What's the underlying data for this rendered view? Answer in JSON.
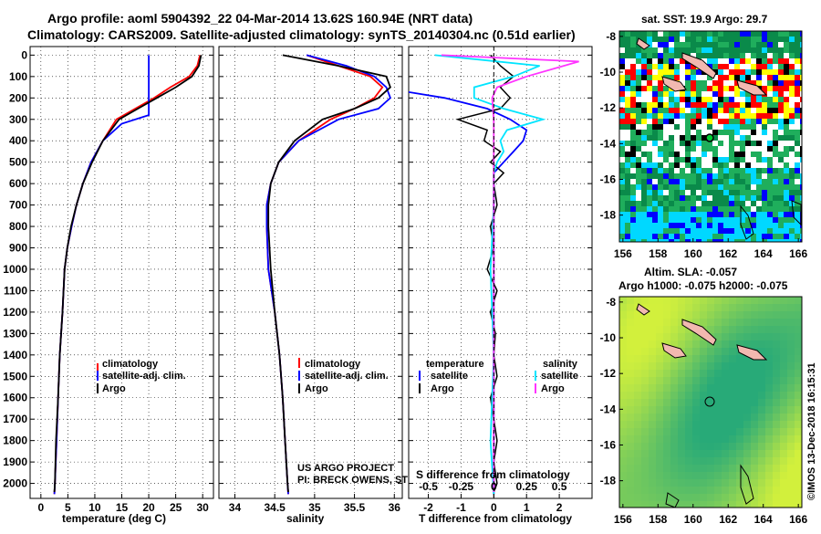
{
  "header": {
    "title_line1": "Argo profile: aoml 5904392_22 04-Mar-2014 13.62S 160.94E (NRT data)",
    "title_line2": "Climatology: CARS2009. Satellite-adjusted climatology: synTS_20140304.nc (0.51d earlier)"
  },
  "colors": {
    "climatology": "#ff0000",
    "satellite": "#0000ff",
    "argo": "#000000",
    "sat_salinity": "#00e5ff",
    "argo_salinity": "#ff33ff"
  },
  "depth_ticks": [
    "0",
    "100",
    "200",
    "300",
    "400",
    "500",
    "600",
    "700",
    "800",
    "900",
    "1000",
    "1100",
    "1200",
    "1300",
    "1400",
    "1500",
    "1600",
    "1700",
    "1800",
    "1900",
    "2000"
  ],
  "legend_profiles": [
    "climatology",
    "satellite-adj. clim.",
    "Argo"
  ],
  "legend_diff": {
    "temperature_heading": "temperature",
    "salinity_heading": "salinity",
    "temp_items": [
      "satellite",
      "Argo"
    ],
    "sal_items": [
      "satellite",
      "Argo"
    ]
  },
  "credits": {
    "line1": "US ARGO PROJECT",
    "line2": "PI: BRECK OWENS, STEVE JAYNE , P.E. ROBBINS"
  },
  "sst_panel": {
    "title": "sat. SST: 19.9 Argo: 29.7",
    "x_ticks": [
      "156",
      "158",
      "160",
      "162",
      "164",
      "166"
    ],
    "y_ticks": [
      "-8",
      "-10",
      "-12",
      "-14",
      "-16",
      "-18"
    ]
  },
  "sla_panel": {
    "title_line1": "Altim. SLA: -0.057",
    "title_line2": "Argo h1000: -0.075 h2000: -0.075",
    "x_ticks": [
      "156",
      "158",
      "160",
      "162",
      "164",
      "166"
    ],
    "y_ticks": [
      "-8",
      "-10",
      "-12",
      "-14",
      "-16",
      "-18"
    ]
  },
  "side_text": "©IMOS 13-Dec-2018 16:15:31",
  "chart_data": [
    {
      "type": "line",
      "name": "temperature profile",
      "xlabel": "temperature (deg C)",
      "ylabel": "depth",
      "xlim": [
        -2,
        32
      ],
      "ylim": [
        2070,
        -40
      ],
      "x_ticks": [
        "0",
        "5",
        "10",
        "15",
        "20",
        "25",
        "30"
      ],
      "series": [
        {
          "name": "climatology",
          "points": [
            [
              29.5,
              0
            ],
            [
              29,
              50
            ],
            [
              27.5,
              100
            ],
            [
              24,
              150
            ],
            [
              21,
              200
            ],
            [
              17.5,
              250
            ],
            [
              14,
              300
            ],
            [
              11.5,
              400
            ],
            [
              9.3,
              500
            ],
            [
              7.8,
              600
            ],
            [
              6.6,
              700
            ],
            [
              5.7,
              800
            ],
            [
              4.9,
              900
            ],
            [
              4.4,
              1000
            ],
            [
              4,
              1200
            ],
            [
              3.5,
              1400
            ],
            [
              3.2,
              1600
            ],
            [
              2.9,
              1800
            ],
            [
              2.6,
              2000
            ],
            [
              2.5,
              2050
            ]
          ]
        },
        {
          "name": "satellite-adj. clim.",
          "points": [
            [
              20,
              0
            ],
            [
              20,
              100
            ],
            [
              20,
              200
            ],
            [
              20,
              280
            ],
            [
              15,
              320
            ],
            [
              11.5,
              400
            ],
            [
              9.3,
              500
            ],
            [
              7.8,
              600
            ],
            [
              6.6,
              700
            ],
            [
              5.7,
              800
            ],
            [
              4.9,
              900
            ],
            [
              4.4,
              1000
            ],
            [
              4,
              1200
            ],
            [
              3.5,
              1400
            ],
            [
              3.2,
              1600
            ],
            [
              2.9,
              1800
            ],
            [
              2.6,
              2000
            ],
            [
              2.5,
              2050
            ]
          ]
        },
        {
          "name": "Argo",
          "points": [
            [
              29.7,
              0
            ],
            [
              29.3,
              50
            ],
            [
              28,
              100
            ],
            [
              25,
              150
            ],
            [
              21.5,
              200
            ],
            [
              18,
              250
            ],
            [
              14.5,
              300
            ],
            [
              11.5,
              400
            ],
            [
              9.5,
              500
            ],
            [
              7.8,
              600
            ],
            [
              6.6,
              700
            ],
            [
              5.6,
              800
            ],
            [
              4.9,
              900
            ],
            [
              4.4,
              1000
            ],
            [
              4,
              1200
            ],
            [
              3.5,
              1400
            ],
            [
              3.2,
              1600
            ],
            [
              2.8,
              1800
            ],
            [
              2.6,
              2000
            ],
            [
              2.5,
              2040
            ]
          ]
        }
      ]
    },
    {
      "type": "line",
      "name": "salinity profile",
      "xlabel": "salinity",
      "ylabel": "depth",
      "xlim": [
        33.8,
        36.1
      ],
      "ylim": [
        2070,
        -40
      ],
      "x_ticks": [
        "34",
        "34.5",
        "35",
        "35.5",
        "36"
      ],
      "series": [
        {
          "name": "climatology",
          "points": [
            [
              34.9,
              0
            ],
            [
              35.3,
              50
            ],
            [
              35.7,
              100
            ],
            [
              35.85,
              150
            ],
            [
              35.75,
              200
            ],
            [
              35.5,
              250
            ],
            [
              35.2,
              300
            ],
            [
              34.8,
              400
            ],
            [
              34.55,
              500
            ],
            [
              34.45,
              600
            ],
            [
              34.4,
              700
            ],
            [
              34.4,
              800
            ],
            [
              34.42,
              1000
            ],
            [
              34.5,
              1200
            ],
            [
              34.56,
              1400
            ],
            [
              34.6,
              1600
            ],
            [
              34.63,
              1800
            ],
            [
              34.66,
              2000
            ],
            [
              34.67,
              2050
            ]
          ]
        },
        {
          "name": "satellite-adj. clim.",
          "points": [
            [
              34.9,
              0
            ],
            [
              35.4,
              50
            ],
            [
              35.75,
              100
            ],
            [
              35.9,
              150
            ],
            [
              35.95,
              200
            ],
            [
              35.8,
              250
            ],
            [
              35.3,
              300
            ],
            [
              34.8,
              400
            ],
            [
              34.55,
              500
            ],
            [
              34.45,
              600
            ],
            [
              34.4,
              700
            ],
            [
              34.4,
              800
            ],
            [
              34.42,
              1000
            ],
            [
              34.5,
              1200
            ],
            [
              34.56,
              1400
            ],
            [
              34.6,
              1600
            ],
            [
              34.63,
              1800
            ],
            [
              34.66,
              2000
            ],
            [
              34.67,
              2050
            ]
          ]
        },
        {
          "name": "Argo",
          "points": [
            [
              34.6,
              0
            ],
            [
              35.3,
              50
            ],
            [
              35.9,
              100
            ],
            [
              35.95,
              150
            ],
            [
              35.8,
              200
            ],
            [
              35.5,
              250
            ],
            [
              35.1,
              300
            ],
            [
              34.75,
              400
            ],
            [
              34.55,
              500
            ],
            [
              34.45,
              600
            ],
            [
              34.42,
              700
            ],
            [
              34.42,
              800
            ],
            [
              34.45,
              1000
            ],
            [
              34.5,
              1200
            ],
            [
              34.56,
              1400
            ],
            [
              34.6,
              1600
            ],
            [
              34.63,
              1800
            ],
            [
              34.66,
              2000
            ],
            [
              34.67,
              2040
            ]
          ]
        }
      ]
    },
    {
      "type": "line",
      "name": "difference from climatology",
      "xlabel": "T difference from climatology",
      "xlabel_top": "S difference from climatology",
      "xlim": [
        -2.6,
        3.0
      ],
      "ylim": [
        2070,
        -40
      ],
      "x_ticks": [
        "-2",
        "-1",
        "0",
        "1",
        "2"
      ],
      "x_ticks_top": [
        "-0.5",
        "-0.25",
        "0",
        "0.25",
        "0.5"
      ],
      "series": [
        {
          "name": "temperature satellite",
          "points": [
            [
              -9,
              0
            ],
            [
              -9,
              100
            ],
            [
              -3.5,
              150
            ],
            [
              -1.5,
              200
            ],
            [
              -0.2,
              250
            ],
            [
              0.5,
              300
            ],
            [
              1,
              350
            ],
            [
              0.9,
              400
            ],
            [
              0.6,
              450
            ],
            [
              0.3,
              500
            ],
            [
              0,
              550
            ],
            [
              0,
              600
            ],
            [
              0,
              1000
            ],
            [
              0,
              2050
            ]
          ]
        },
        {
          "name": "temperature Argo",
          "points": [
            [
              -0.1,
              0
            ],
            [
              0.2,
              50
            ],
            [
              0.6,
              100
            ],
            [
              0.2,
              150
            ],
            [
              0.5,
              200
            ],
            [
              0.2,
              250
            ],
            [
              -1.1,
              300
            ],
            [
              -0.2,
              350
            ],
            [
              -0.3,
              400
            ],
            [
              0.2,
              450
            ],
            [
              -0.1,
              500
            ],
            [
              0.3,
              550
            ],
            [
              0,
              600
            ],
            [
              0.1,
              700
            ],
            [
              -0.1,
              800
            ],
            [
              0,
              900
            ],
            [
              -0.2,
              1000
            ],
            [
              0.1,
              1100
            ],
            [
              -0.1,
              1200
            ],
            [
              0.05,
              1300
            ],
            [
              0,
              1400
            ],
            [
              0.1,
              1500
            ],
            [
              -0.1,
              1600
            ],
            [
              0,
              1700
            ],
            [
              0.1,
              1800
            ],
            [
              0,
              1900
            ],
            [
              0.1,
              2000
            ],
            [
              0,
              2040
            ]
          ]
        },
        {
          "name": "salinity satellite",
          "points": [
            [
              -1.8,
              0
            ],
            [
              1.4,
              50
            ],
            [
              0.6,
              100
            ],
            [
              -0.6,
              150
            ],
            [
              -0.6,
              200
            ],
            [
              0.3,
              250
            ],
            [
              1.5,
              300
            ],
            [
              0.4,
              350
            ],
            [
              0.2,
              400
            ],
            [
              0.3,
              450
            ],
            [
              0.1,
              500
            ],
            [
              0,
              550
            ],
            [
              0,
              700
            ],
            [
              -0.1,
              1000
            ],
            [
              0,
              1400
            ],
            [
              -0.1,
              1800
            ],
            [
              0,
              2050
            ]
          ]
        },
        {
          "name": "salinity Argo",
          "points": [
            [
              -1.6,
              0
            ],
            [
              2.6,
              30
            ],
            [
              1,
              100
            ],
            [
              0.1,
              150
            ],
            [
              -0.05,
              200
            ],
            [
              0,
              300
            ],
            [
              0,
              500
            ],
            [
              0,
              2040
            ]
          ]
        }
      ]
    }
  ]
}
